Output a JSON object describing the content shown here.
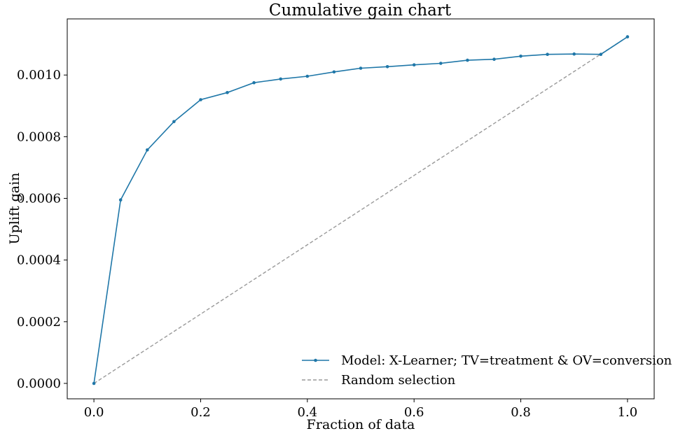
{
  "chart_data": {
    "type": "line",
    "title": "Cumulative gain chart",
    "xlabel": "Fraction of data",
    "ylabel": "Uplift gain",
    "xlim": [
      -0.05,
      1.05
    ],
    "ylim": [
      -5e-05,
      0.001182
    ],
    "xticks": [
      0.0,
      0.2,
      0.4,
      0.6,
      0.8,
      1.0
    ],
    "xtick_labels": [
      "0.0",
      "0.2",
      "0.4",
      "0.6",
      "0.8",
      "1.0"
    ],
    "yticks": [
      0.0,
      0.0002,
      0.0004,
      0.0006,
      0.0008,
      0.001
    ],
    "ytick_labels": [
      "0.0000",
      "0.0002",
      "0.0004",
      "0.0006",
      "0.0008",
      "0.0010"
    ],
    "grid": false,
    "legend_position": "lower-right",
    "series": [
      {
        "name": "Model: X-Learner; TV=treatment & OV=conversion",
        "color": "#1f77a8",
        "style": "solid",
        "marker": "dot",
        "x": [
          0.0,
          0.05,
          0.1,
          0.15,
          0.2,
          0.25,
          0.3,
          0.35,
          0.4,
          0.45,
          0.5,
          0.55,
          0.6,
          0.65,
          0.7,
          0.75,
          0.8,
          0.85,
          0.9,
          0.95,
          1.0
        ],
        "y": [
          0.0,
          0.000595,
          0.000757,
          0.000849,
          0.00092,
          0.000943,
          0.000975,
          0.000987,
          0.000996,
          0.00101,
          0.001022,
          0.001027,
          0.001033,
          0.001038,
          0.001048,
          0.001051,
          0.001061,
          0.001067,
          0.001068,
          0.001067,
          0.001124
        ]
      },
      {
        "name": "Random selection",
        "color": "#999999",
        "style": "dashed",
        "marker": "none",
        "x": [
          0.0,
          1.0
        ],
        "y": [
          0.0,
          0.001124
        ]
      }
    ]
  }
}
